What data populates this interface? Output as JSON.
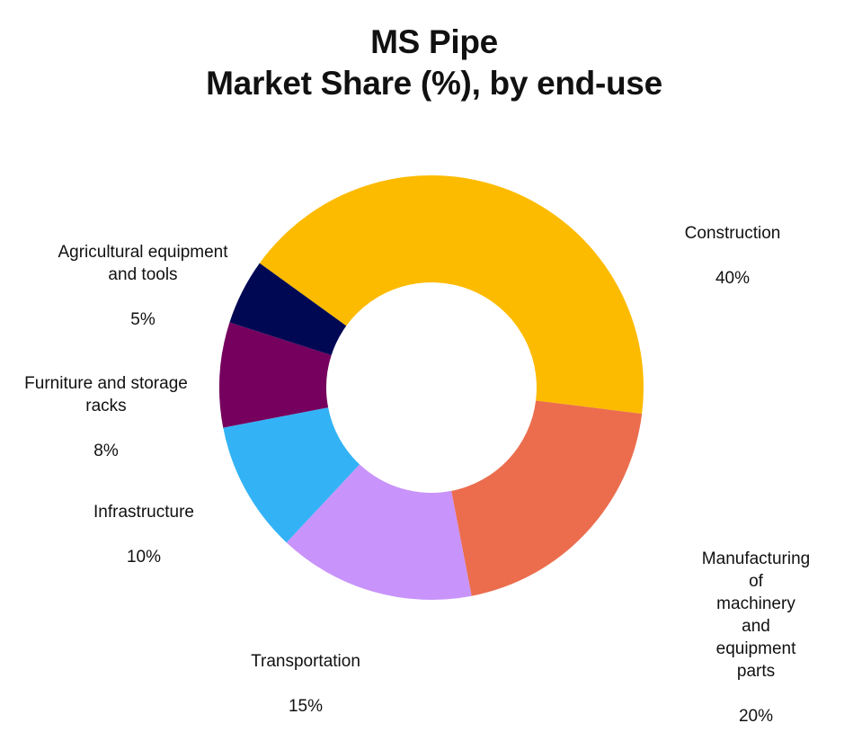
{
  "title": {
    "line1": "MS Pipe",
    "line2": "Market Share (%), by end-use"
  },
  "chart_data": {
    "type": "pie",
    "subtype": "donut",
    "title": "MS Pipe Market Share (%), by end-use",
    "categories": [
      "Construction",
      "Manufacturing of machinery and equipment parts",
      "Transportation",
      "Infrastructure",
      "Furniture and storage racks",
      "Agricultural equipment and tools"
    ],
    "values": [
      40,
      20,
      15,
      10,
      8,
      5
    ],
    "unit": "%",
    "colors": [
      "#FDBB00",
      "#EB6D4E",
      "#C893FA",
      "#33B3F5",
      "#75005E",
      "#000854"
    ],
    "legend": "none (direct labels)"
  },
  "labels": [
    {
      "name": "Construction",
      "text": "Construction",
      "pct": "40%"
    },
    {
      "name": "Manufacturing",
      "text": "Manufacturing of\nmachinery and\nequipment parts",
      "pct": "20%"
    },
    {
      "name": "Transportation",
      "text": "Transportation",
      "pct": "15%"
    },
    {
      "name": "Infrastructure",
      "text": "Infrastructure",
      "pct": "10%"
    },
    {
      "name": "Furniture",
      "text": "Furniture and storage\nracks",
      "pct": "8%"
    },
    {
      "name": "Agricultural",
      "text": "Agricultural equipment\nand tools",
      "pct": "5%"
    }
  ]
}
